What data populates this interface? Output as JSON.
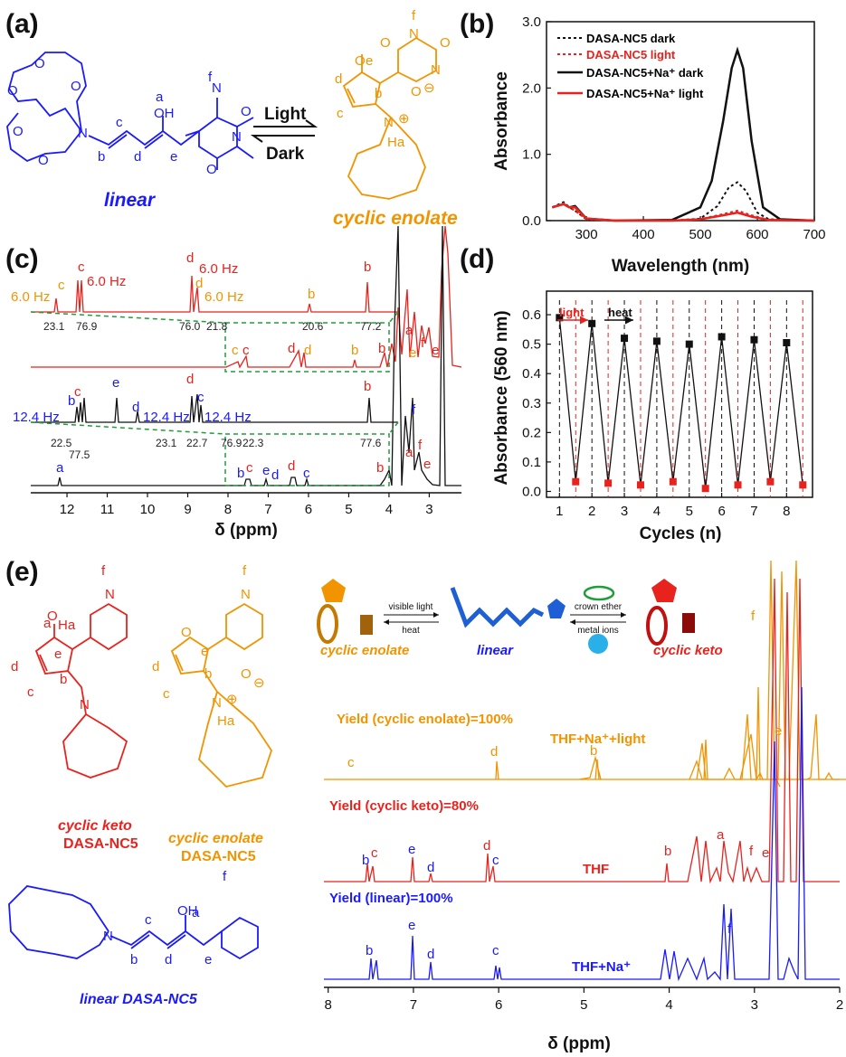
{
  "panels": {
    "a": "(a)",
    "b": "(b)",
    "c": "(c)",
    "d": "(d)",
    "e": "(e)"
  },
  "colors": {
    "blue": "#1a1aff",
    "orange": "#f29400",
    "red": "#e8231e",
    "black": "#111111",
    "green": "#1f9d3a"
  },
  "panel_a": {
    "linear_label": "linear",
    "cyclic_label": "cyclic enolate",
    "arrow_top": "Light",
    "arrow_bottom": "Dark",
    "atoms": {
      "N": "N",
      "O": "O",
      "OH": "OH",
      "Ha": "Ha",
      "plus": "⊕",
      "minus": "⊖"
    },
    "letters": {
      "a": "a",
      "b": "b",
      "c": "c",
      "d": "d",
      "e": "e",
      "f": "f"
    }
  },
  "panel_b": {
    "xlabel": "Wavelength (nm)",
    "ylabel": "Absorbance",
    "xticks": [
      "300",
      "400",
      "500",
      "600",
      "700"
    ],
    "yticks": [
      "0.0",
      "1.0",
      "2.0",
      "3.0"
    ],
    "legend": [
      "DASA-NC5 dark",
      "DASA-NC5 light",
      "DASA-NC5+Na⁺ dark",
      "DASA-NC5+Na⁺ light"
    ]
  },
  "panel_c": {
    "xlabel": "δ (ppm)",
    "xticks": [
      "12",
      "11",
      "10",
      "9",
      "8",
      "7",
      "6",
      "5",
      "4",
      "3"
    ],
    "hz_red": [
      "6.0 Hz",
      "6.0 Hz",
      "6.0 Hz",
      "6.0 Hz"
    ],
    "hz_blue": [
      "12.4 Hz",
      "12.4 Hz",
      "12.4 Hz"
    ],
    "int_red": [
      "23.1",
      "76.9",
      "76.0",
      "21.8",
      "20.6",
      "77.2"
    ],
    "int_black": [
      "22.5",
      "77.5",
      "23.1",
      "22.7",
      "76.9",
      "22.3",
      "77.6"
    ]
  },
  "panel_d": {
    "xlabel": "Cycles (n)",
    "ylabel": "Absorbance (560 nm)",
    "xticks": [
      "1",
      "2",
      "3",
      "4",
      "5",
      "6",
      "7",
      "8"
    ],
    "yticks": [
      "0.0",
      "0.1",
      "0.2",
      "0.3",
      "0.4",
      "0.5",
      "0.6"
    ],
    "light_label": "light",
    "heat_label": "heat"
  },
  "panel_e": {
    "xlabel": "δ (ppm)",
    "xticks": [
      "8",
      "7",
      "6",
      "5",
      "4",
      "3",
      "2"
    ],
    "cyclic_keto_title": "cyclic keto",
    "cyclic_keto_sub": "DASA-NC5",
    "cyclic_enolate_title": "cyclic enolate",
    "cyclic_enolate_sub": "DASA-NC5",
    "linear_title": "linear DASA-NC5",
    "scheme_left": "cyclic enolate",
    "scheme_mid": "linear",
    "scheme_right": "cyclic keto",
    "arrow_left_top": "visible light",
    "arrow_left_bottom": "heat",
    "arrow_right_top": "crown ether",
    "arrow_right_bottom": "metal ions",
    "yield_orange": "Yield (cyclic enolate)=100%",
    "yield_red": "Yield (cyclic keto)=80%",
    "yield_blue": "Yield (linear)=100%",
    "cond_orange": "THF+Na⁺+light",
    "cond_red": "THF",
    "cond_blue": "THF+Na⁺"
  },
  "chart_data": [
    {
      "type": "line",
      "panel": "b",
      "xlabel": "Wavelength (nm)",
      "ylabel": "Absorbance",
      "xlim": [
        230,
        700
      ],
      "ylim": [
        0,
        3
      ],
      "series": [
        {
          "name": "DASA-NC5 dark",
          "x": [
            240,
            260,
            270,
            280,
            300,
            350,
            450,
            500,
            530,
            550,
            565,
            580,
            600,
            620,
            700
          ],
          "y": [
            0.2,
            0.28,
            0.2,
            0.15,
            0.02,
            0.0,
            0.0,
            0.03,
            0.22,
            0.5,
            0.58,
            0.45,
            0.12,
            0.02,
            0.0
          ]
        },
        {
          "name": "DASA-NC5 light",
          "x": [
            240,
            260,
            270,
            280,
            300,
            350,
            450,
            500,
            540,
            565,
            590,
            620,
            700
          ],
          "y": [
            0.2,
            0.26,
            0.2,
            0.15,
            0.02,
            0.0,
            0.0,
            0.02,
            0.1,
            0.15,
            0.08,
            0.01,
            0.0
          ]
        },
        {
          "name": "DASA-NC5+Na⁺ dark",
          "x": [
            240,
            260,
            270,
            280,
            300,
            350,
            450,
            500,
            520,
            540,
            555,
            565,
            575,
            590,
            610,
            640,
            700
          ],
          "y": [
            0.2,
            0.25,
            0.2,
            0.22,
            0.03,
            0.0,
            0.01,
            0.2,
            0.6,
            1.5,
            2.3,
            2.57,
            2.3,
            1.2,
            0.2,
            0.02,
            0.0
          ]
        },
        {
          "name": "DASA-NC5+Na⁺ light",
          "x": [
            240,
            260,
            270,
            280,
            300,
            350,
            450,
            500,
            540,
            565,
            590,
            620,
            700
          ],
          "y": [
            0.2,
            0.25,
            0.2,
            0.2,
            0.03,
            0.0,
            0.0,
            0.02,
            0.08,
            0.12,
            0.06,
            0.01,
            0.0
          ]
        }
      ]
    },
    {
      "type": "scatter",
      "panel": "d",
      "xlabel": "Cycles (n)",
      "ylabel": "Absorbance (560 nm)",
      "xlim": [
        0.6,
        8.8
      ],
      "ylim": [
        -0.02,
        0.68
      ],
      "series": [
        {
          "name": "dark",
          "x": [
            1,
            2,
            3,
            4,
            5,
            6,
            7,
            8
          ],
          "y": [
            0.59,
            0.57,
            0.52,
            0.51,
            0.5,
            0.525,
            0.515,
            0.505
          ]
        },
        {
          "name": "light",
          "x": [
            1.5,
            2.5,
            3.5,
            4.5,
            5.5,
            6.5,
            7.5,
            8.5
          ],
          "y": [
            0.033,
            0.028,
            0.022,
            0.033,
            0.01,
            0.022,
            0.033,
            0.022
          ]
        }
      ]
    }
  ]
}
